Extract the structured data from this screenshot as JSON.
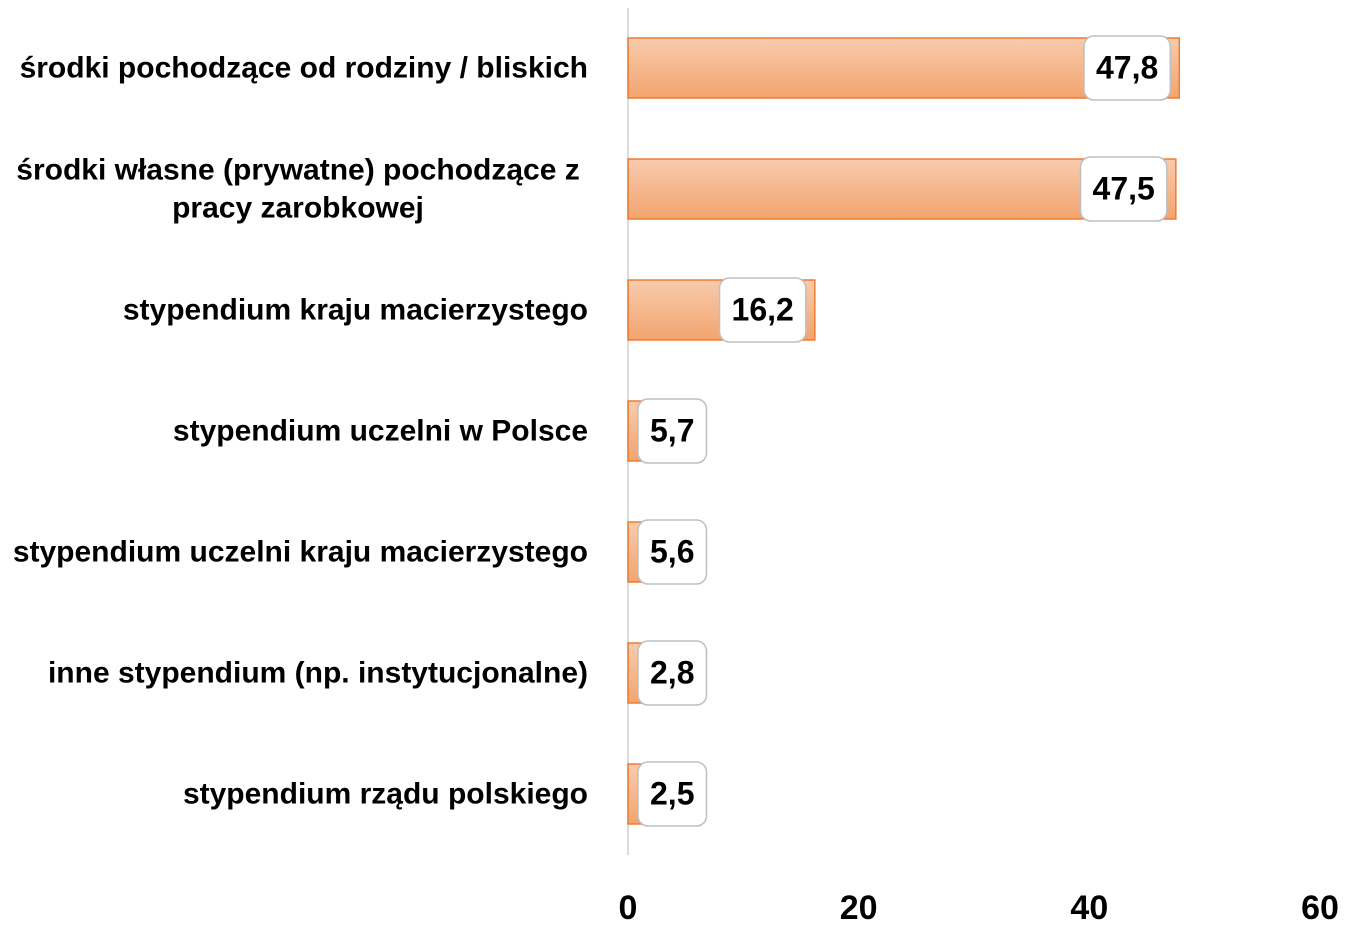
{
  "chart_data": {
    "type": "bar",
    "orientation": "horizontal",
    "categories": [
      "środki pochodzące od rodziny / bliskich",
      "środki własne (prywatne) pochodzące z pracy zarobkowej",
      "stypendium kraju macierzystego",
      "stypendium uczelni w Polsce",
      "stypendium uczelni kraju macierzystego",
      "inne stypendium (np. instytucjonalne)",
      "stypendium rządu polskiego"
    ],
    "values": [
      47.8,
      47.5,
      16.2,
      5.7,
      5.6,
      2.8,
      2.5
    ],
    "value_labels": [
      "47,8",
      "47,5",
      "16,2",
      "5,7",
      "5,6",
      "2,8",
      "2,5"
    ],
    "color": "#ed7d31",
    "xlim": [
      0,
      60
    ],
    "xticks": [
      0,
      20,
      40,
      60
    ],
    "grid": false
  }
}
